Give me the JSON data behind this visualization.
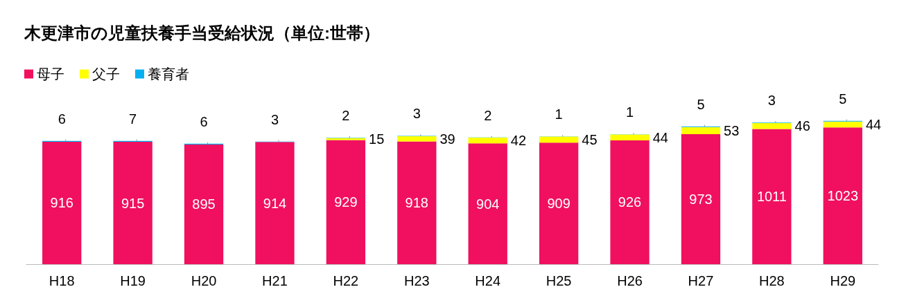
{
  "chart_data": {
    "type": "bar",
    "stacked": true,
    "title": "木更津市の児童扶養手当受給状況（単位:世帯）",
    "categories": [
      "H18",
      "H19",
      "H20",
      "H21",
      "H22",
      "H23",
      "H24",
      "H25",
      "H26",
      "H27",
      "H28",
      "H29"
    ],
    "series": [
      {
        "name": "母子",
        "color": "#f0105f",
        "values": [
          916,
          915,
          895,
          914,
          929,
          918,
          904,
          909,
          926,
          973,
          1011,
          1023
        ]
      },
      {
        "name": "父子",
        "color": "#ffff00",
        "values": [
          null,
          null,
          null,
          null,
          15,
          39,
          42,
          45,
          44,
          53,
          46,
          44
        ]
      },
      {
        "name": "養育者",
        "color": "#00b0f0",
        "values": [
          6,
          7,
          6,
          3,
          2,
          3,
          2,
          1,
          1,
          5,
          3,
          5
        ]
      }
    ],
    "data_labels": true,
    "legend": "top left",
    "grid": false,
    "tick_labels": "x"
  }
}
